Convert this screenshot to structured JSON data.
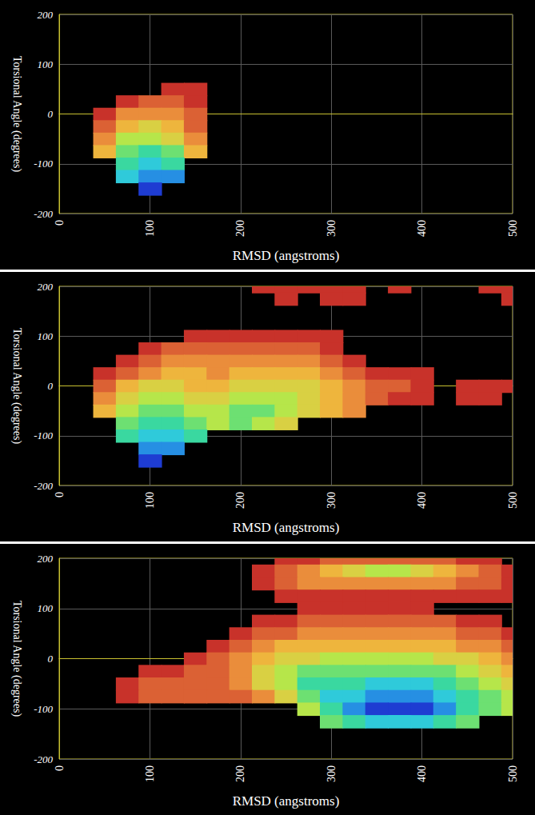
{
  "chart_data": [
    {
      "type": "surface",
      "x_label": "RMSD (angstroms)",
      "y_label": "Torsional Angle (degrees)",
      "xlim": [
        0,
        500
      ],
      "xticks": [
        0,
        100,
        200,
        300,
        400,
        500
      ],
      "ylim": [
        -200,
        200
      ],
      "yticks": [
        -200,
        -100,
        0,
        100,
        200
      ],
      "grid": true,
      "zlim": [
        0,
        10
      ],
      "x": [
        50,
        75,
        100,
        125,
        150
      ],
      "y": [
        50,
        25,
        0,
        -25,
        -50,
        -75,
        -100,
        -125,
        -150
      ],
      "z": [
        [
          null,
          null,
          null,
          10,
          10
        ],
        [
          null,
          10,
          9,
          9,
          10
        ],
        [
          10,
          8,
          8,
          8,
          9
        ],
        [
          9,
          7,
          6,
          7,
          9
        ],
        [
          8,
          5,
          5,
          6,
          8
        ],
        [
          7,
          4,
          3,
          4,
          7
        ],
        [
          null,
          3,
          2,
          3,
          null
        ],
        [
          null,
          2,
          1,
          1,
          null
        ],
        [
          null,
          null,
          0,
          null,
          null
        ]
      ]
    },
    {
      "type": "surface",
      "x_label": "RMSD (angstroms)",
      "y_label": "Torsional Angle (degrees)",
      "xlim": [
        0,
        500
      ],
      "xticks": [
        0,
        100,
        200,
        300,
        400,
        500
      ],
      "ylim": [
        -200,
        200
      ],
      "yticks": [
        -200,
        -100,
        0,
        100,
        200
      ],
      "grid": true,
      "zlim": [
        0,
        10
      ],
      "x": [
        50,
        75,
        100,
        125,
        150,
        175,
        200,
        225,
        250,
        275,
        300,
        325,
        350,
        375,
        400,
        425,
        450,
        475,
        500
      ],
      "y": [
        200,
        175,
        100,
        75,
        50,
        25,
        0,
        -25,
        -50,
        -75,
        -100,
        -125,
        -150
      ],
      "z": [
        [
          null,
          null,
          null,
          null,
          null,
          null,
          null,
          10,
          10,
          10,
          10,
          10,
          null,
          10,
          null,
          null,
          null,
          10,
          10
        ],
        [
          null,
          null,
          null,
          null,
          null,
          null,
          null,
          null,
          10,
          null,
          10,
          10,
          null,
          null,
          null,
          null,
          null,
          null,
          10
        ],
        [
          null,
          null,
          null,
          null,
          10,
          10,
          10,
          10,
          10,
          10,
          10,
          null,
          null,
          null,
          null,
          null,
          null,
          null,
          null
        ],
        [
          null,
          null,
          10,
          9,
          9,
          9,
          9,
          9,
          9,
          9,
          10,
          null,
          null,
          null,
          null,
          null,
          null,
          null,
          null
        ],
        [
          null,
          10,
          9,
          8,
          8,
          8,
          8,
          8,
          8,
          8,
          9,
          10,
          null,
          null,
          null,
          null,
          null,
          null,
          null
        ],
        [
          10,
          9,
          8,
          7,
          7,
          8,
          7,
          7,
          7,
          7,
          8,
          9,
          10,
          10,
          10,
          null,
          null,
          null,
          null
        ],
        [
          9,
          7,
          6,
          6,
          7,
          7,
          6,
          6,
          6,
          6,
          7,
          8,
          9,
          9,
          10,
          null,
          10,
          10,
          10
        ],
        [
          8,
          6,
          5,
          5,
          6,
          6,
          5,
          5,
          5,
          6,
          7,
          8,
          9,
          10,
          10,
          null,
          10,
          10,
          null
        ],
        [
          7,
          5,
          4,
          4,
          5,
          5,
          4,
          4,
          5,
          6,
          7,
          8,
          null,
          null,
          null,
          null,
          null,
          null,
          null
        ],
        [
          null,
          4,
          3,
          3,
          4,
          5,
          4,
          5,
          6,
          null,
          null,
          null,
          null,
          null,
          null,
          null,
          null,
          null,
          null
        ],
        [
          null,
          3,
          2,
          2,
          3,
          null,
          null,
          null,
          null,
          null,
          null,
          null,
          null,
          null,
          null,
          null,
          null,
          null,
          null
        ],
        [
          null,
          null,
          1,
          1,
          null,
          null,
          null,
          null,
          null,
          null,
          null,
          null,
          null,
          null,
          null,
          null,
          null,
          null,
          null
        ],
        [
          null,
          null,
          0,
          null,
          null,
          null,
          null,
          null,
          null,
          null,
          null,
          null,
          null,
          null,
          null,
          null,
          null,
          null,
          null
        ]
      ]
    },
    {
      "type": "surface",
      "x_label": "RMSD (angstroms)",
      "y_label": "Torsional Angle (degrees)",
      "xlim": [
        0,
        500
      ],
      "xticks": [
        0,
        100,
        200,
        300,
        400,
        500
      ],
      "ylim": [
        -200,
        200
      ],
      "yticks": [
        -200,
        -100,
        0,
        100,
        200
      ],
      "grid": true,
      "zlim": [
        0,
        10
      ],
      "x": [
        50,
        75,
        100,
        125,
        150,
        175,
        200,
        225,
        250,
        275,
        300,
        325,
        350,
        375,
        400,
        425,
        450,
        475,
        500
      ],
      "y": [
        200,
        175,
        150,
        125,
        100,
        75,
        50,
        25,
        0,
        -25,
        -50,
        -75,
        -100,
        -125
      ],
      "z": [
        [
          null,
          null,
          null,
          null,
          null,
          null,
          null,
          null,
          10,
          10,
          9,
          9,
          9,
          9,
          9,
          9,
          10,
          10,
          null
        ],
        [
          null,
          null,
          null,
          null,
          null,
          null,
          null,
          10,
          9,
          8,
          7,
          6,
          5,
          5,
          6,
          7,
          8,
          9,
          10
        ],
        [
          null,
          null,
          null,
          null,
          null,
          null,
          null,
          10,
          9,
          8,
          8,
          8,
          8,
          8,
          8,
          8,
          9,
          9,
          10
        ],
        [
          null,
          null,
          null,
          null,
          null,
          null,
          null,
          null,
          10,
          10,
          10,
          10,
          10,
          10,
          10,
          10,
          10,
          10,
          10
        ],
        [
          null,
          null,
          null,
          null,
          null,
          null,
          null,
          null,
          null,
          10,
          10,
          10,
          10,
          10,
          10,
          null,
          null,
          null,
          null
        ],
        [
          null,
          null,
          null,
          null,
          null,
          null,
          null,
          10,
          10,
          9,
          9,
          9,
          9,
          9,
          9,
          9,
          10,
          10,
          null
        ],
        [
          null,
          null,
          null,
          null,
          null,
          null,
          10,
          9,
          9,
          8,
          8,
          8,
          8,
          8,
          8,
          8,
          9,
          9,
          10
        ],
        [
          null,
          null,
          null,
          null,
          null,
          10,
          9,
          8,
          7,
          7,
          7,
          7,
          7,
          7,
          7,
          7,
          8,
          8,
          9
        ],
        [
          null,
          null,
          null,
          null,
          10,
          9,
          8,
          7,
          6,
          6,
          5,
          5,
          5,
          5,
          5,
          6,
          6,
          7,
          8
        ],
        [
          null,
          null,
          10,
          10,
          9,
          9,
          8,
          6,
          5,
          4,
          4,
          4,
          4,
          4,
          4,
          4,
          5,
          6,
          7
        ],
        [
          null,
          10,
          9,
          9,
          9,
          9,
          8,
          6,
          5,
          3,
          3,
          3,
          2,
          2,
          2,
          3,
          4,
          5,
          6
        ],
        [
          null,
          10,
          9,
          9,
          9,
          9,
          9,
          8,
          6,
          4,
          2,
          2,
          1,
          1,
          1,
          2,
          3,
          4,
          5
        ],
        [
          null,
          null,
          null,
          null,
          null,
          null,
          null,
          null,
          null,
          5,
          3,
          1,
          0,
          0,
          0,
          1,
          3,
          4,
          5
        ],
        [
          null,
          null,
          null,
          null,
          null,
          null,
          null,
          null,
          null,
          null,
          4,
          3,
          2,
          2,
          2,
          3,
          4,
          null,
          null
        ]
      ]
    }
  ]
}
